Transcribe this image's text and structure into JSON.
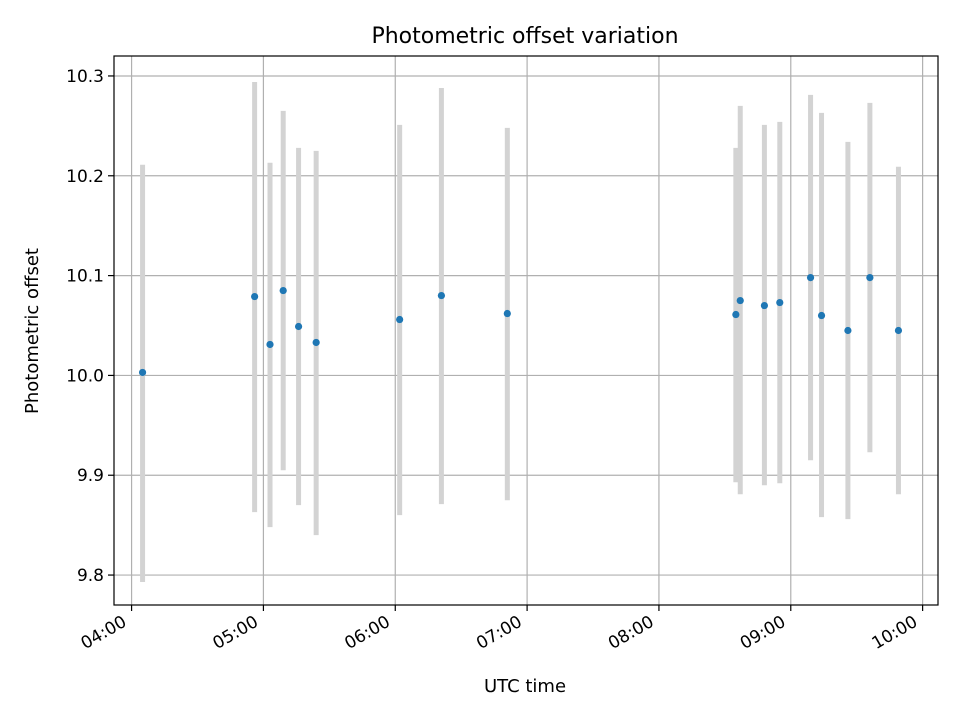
{
  "chart_data": {
    "type": "scatter",
    "title": "Photometric offset variation",
    "xlabel": "UTC time",
    "ylabel": "Photometric offset",
    "xlim": [
      "03:52",
      "10:07"
    ],
    "ylim": [
      9.77,
      10.32
    ],
    "x_ticks": [
      "04:00",
      "05:00",
      "06:00",
      "07:00",
      "08:00",
      "09:00",
      "10:00"
    ],
    "y_ticks": [
      "9.8",
      "9.9",
      "10.0",
      "10.1",
      "10.2",
      "10.3"
    ],
    "grid": true,
    "legend": "none",
    "colors": {
      "points": "#1f77b4",
      "error_bars": "#d3d3d3",
      "grid": "#b0b0b0",
      "axes": "#000000"
    },
    "points": [
      {
        "time": "04:05",
        "y": 10.003,
        "low": 9.793,
        "high": 10.211
      },
      {
        "time": "04:56",
        "y": 10.079,
        "low": 9.863,
        "high": 10.294
      },
      {
        "time": "05:03",
        "y": 10.031,
        "low": 9.848,
        "high": 10.213
      },
      {
        "time": "05:09",
        "y": 10.085,
        "low": 9.905,
        "high": 10.265
      },
      {
        "time": "05:16",
        "y": 10.049,
        "low": 9.87,
        "high": 10.228
      },
      {
        "time": "05:24",
        "y": 10.033,
        "low": 9.84,
        "high": 10.225
      },
      {
        "time": "06:02",
        "y": 10.056,
        "low": 9.86,
        "high": 10.251
      },
      {
        "time": "06:21",
        "y": 10.08,
        "low": 9.871,
        "high": 10.288
      },
      {
        "time": "06:51",
        "y": 10.062,
        "low": 9.875,
        "high": 10.248
      },
      {
        "time": "08:35",
        "y": 10.061,
        "low": 9.893,
        "high": 10.228
      },
      {
        "time": "08:37",
        "y": 10.075,
        "low": 9.881,
        "high": 10.27
      },
      {
        "time": "08:48",
        "y": 10.07,
        "low": 9.89,
        "high": 10.251
      },
      {
        "time": "08:55",
        "y": 10.073,
        "low": 9.892,
        "high": 10.254
      },
      {
        "time": "09:09",
        "y": 10.098,
        "low": 9.915,
        "high": 10.281
      },
      {
        "time": "09:14",
        "y": 10.06,
        "low": 9.858,
        "high": 10.263
      },
      {
        "time": "09:26",
        "y": 10.045,
        "low": 9.856,
        "high": 10.234
      },
      {
        "time": "09:36",
        "y": 10.098,
        "low": 9.923,
        "high": 10.273
      },
      {
        "time": "09:49",
        "y": 10.045,
        "low": 9.881,
        "high": 10.209
      }
    ]
  }
}
